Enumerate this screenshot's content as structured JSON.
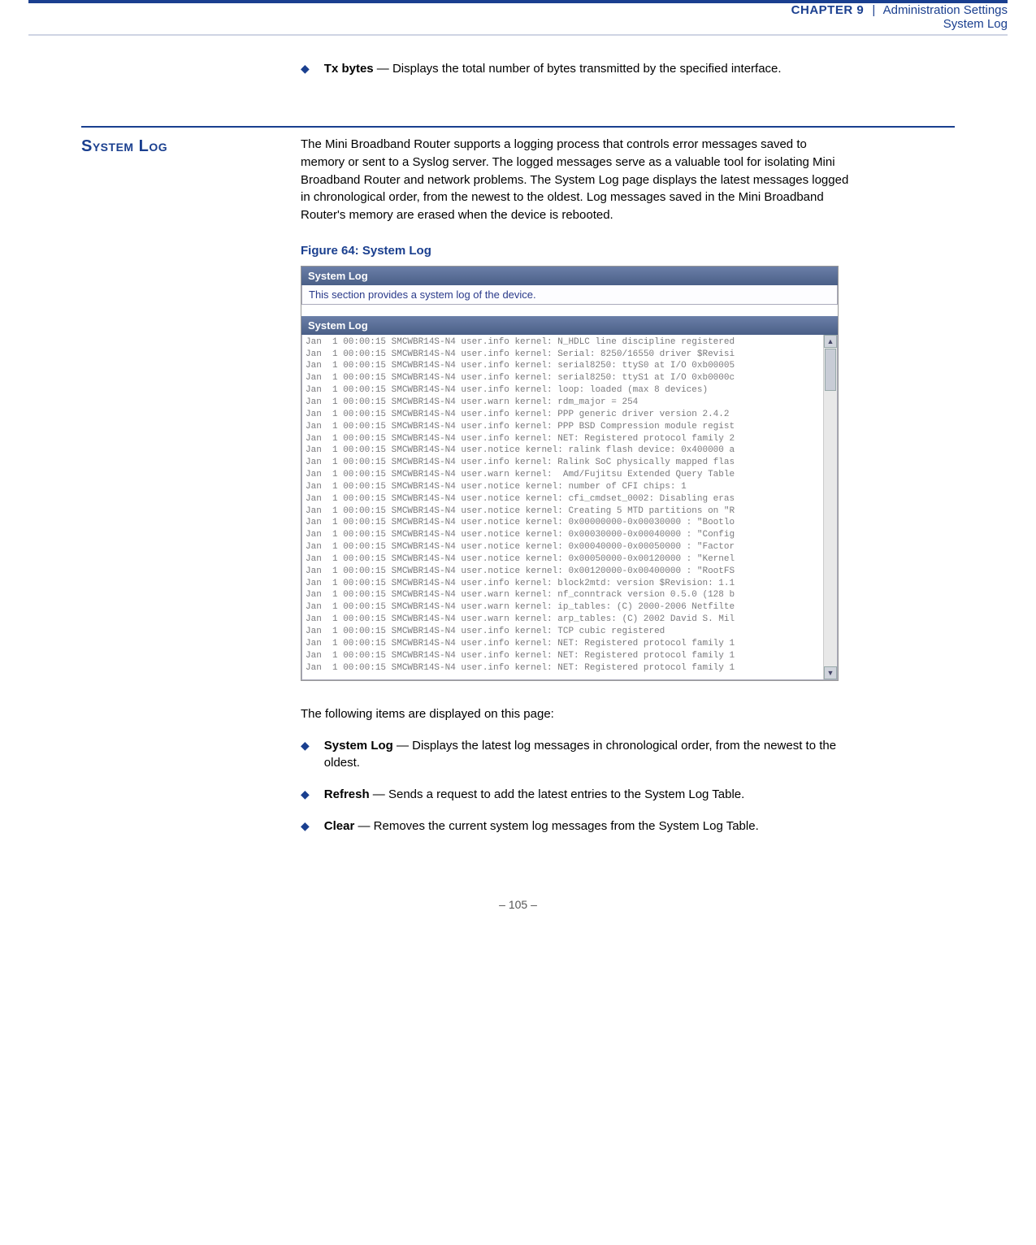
{
  "header": {
    "chapter_label": "CHAPTER 9",
    "separator": "|",
    "section": "Administration Settings",
    "subsection": "System Log"
  },
  "tx_bullet": {
    "term": "Tx bytes",
    "desc": " — Displays the total number of bytes transmitted by the specified interface."
  },
  "section": {
    "title": "System Log",
    "intro": "The Mini Broadband Router supports a logging process that controls error messages saved to memory or sent to a Syslog server. The logged messages serve as a valuable tool for isolating Mini Broadband Router and network problems. The System Log page displays the latest messages logged in chronological order, from the newest to the oldest. Log messages saved in the Mini Broadband Router's memory are erased when the device is rebooted."
  },
  "figure": {
    "caption": "Figure 64:  System Log",
    "bar1": "System Log",
    "desc": "This section provides a system log of the device.",
    "bar2": "System Log",
    "log_lines": [
      "Jan  1 00:00:15 SMCWBR14S-N4 user.info kernel: N_HDLC line discipline registered",
      "Jan  1 00:00:15 SMCWBR14S-N4 user.info kernel: Serial: 8250/16550 driver $Revisi",
      "Jan  1 00:00:15 SMCWBR14S-N4 user.info kernel: serial8250: ttyS0 at I/O 0xb00005",
      "Jan  1 00:00:15 SMCWBR14S-N4 user.info kernel: serial8250: ttyS1 at I/O 0xb0000c",
      "Jan  1 00:00:15 SMCWBR14S-N4 user.info kernel: loop: loaded (max 8 devices)",
      "Jan  1 00:00:15 SMCWBR14S-N4 user.warn kernel: rdm_major = 254",
      "Jan  1 00:00:15 SMCWBR14S-N4 user.info kernel: PPP generic driver version 2.4.2",
      "Jan  1 00:00:15 SMCWBR14S-N4 user.info kernel: PPP BSD Compression module regist",
      "Jan  1 00:00:15 SMCWBR14S-N4 user.info kernel: NET: Registered protocol family 2",
      "Jan  1 00:00:15 SMCWBR14S-N4 user.notice kernel: ralink flash device: 0x400000 a",
      "Jan  1 00:00:15 SMCWBR14S-N4 user.info kernel: Ralink SoC physically mapped flas",
      "Jan  1 00:00:15 SMCWBR14S-N4 user.warn kernel:  Amd/Fujitsu Extended Query Table",
      "Jan  1 00:00:15 SMCWBR14S-N4 user.notice kernel: number of CFI chips: 1",
      "Jan  1 00:00:15 SMCWBR14S-N4 user.notice kernel: cfi_cmdset_0002: Disabling eras",
      "Jan  1 00:00:15 SMCWBR14S-N4 user.notice kernel: Creating 5 MTD partitions on \"R",
      "Jan  1 00:00:15 SMCWBR14S-N4 user.notice kernel: 0x00000000-0x00030000 : \"Bootlo",
      "Jan  1 00:00:15 SMCWBR14S-N4 user.notice kernel: 0x00030000-0x00040000 : \"Config",
      "Jan  1 00:00:15 SMCWBR14S-N4 user.notice kernel: 0x00040000-0x00050000 : \"Factor",
      "Jan  1 00:00:15 SMCWBR14S-N4 user.notice kernel: 0x00050000-0x00120000 : \"Kernel",
      "Jan  1 00:00:15 SMCWBR14S-N4 user.notice kernel: 0x00120000-0x00400000 : \"RootFS",
      "Jan  1 00:00:15 SMCWBR14S-N4 user.info kernel: block2mtd: version $Revision: 1.1",
      "Jan  1 00:00:15 SMCWBR14S-N4 user.warn kernel: nf_conntrack version 0.5.0 (128 b",
      "Jan  1 00:00:15 SMCWBR14S-N4 user.warn kernel: ip_tables: (C) 2000-2006 Netfilte",
      "Jan  1 00:00:15 SMCWBR14S-N4 user.warn kernel: arp_tables: (C) 2002 David S. Mil",
      "Jan  1 00:00:15 SMCWBR14S-N4 user.info kernel: TCP cubic registered",
      "Jan  1 00:00:15 SMCWBR14S-N4 user.info kernel: NET: Registered protocol family 1",
      "Jan  1 00:00:15 SMCWBR14S-N4 user.info kernel: NET: Registered protocol family 1",
      "Jan  1 00:00:15 SMCWBR14S-N4 user.info kernel: NET: Registered protocol family 1"
    ]
  },
  "following_text": "The following items are displayed on this page:",
  "bullets": [
    {
      "term": "System Log",
      "desc": " — Displays the latest log messages in chronological order, from the newest to the oldest."
    },
    {
      "term": "Refresh",
      "desc": " — Sends a request to add the latest entries to the System Log Table."
    },
    {
      "term": "Clear",
      "desc": " — Removes the current system log messages from the System Log Table."
    }
  ],
  "footer": "–  105  –",
  "colors": {
    "brand": "#1a3f8f",
    "bar_grad_top": "#6b7fa8",
    "bar_grad_bottom": "#4a5f87"
  }
}
